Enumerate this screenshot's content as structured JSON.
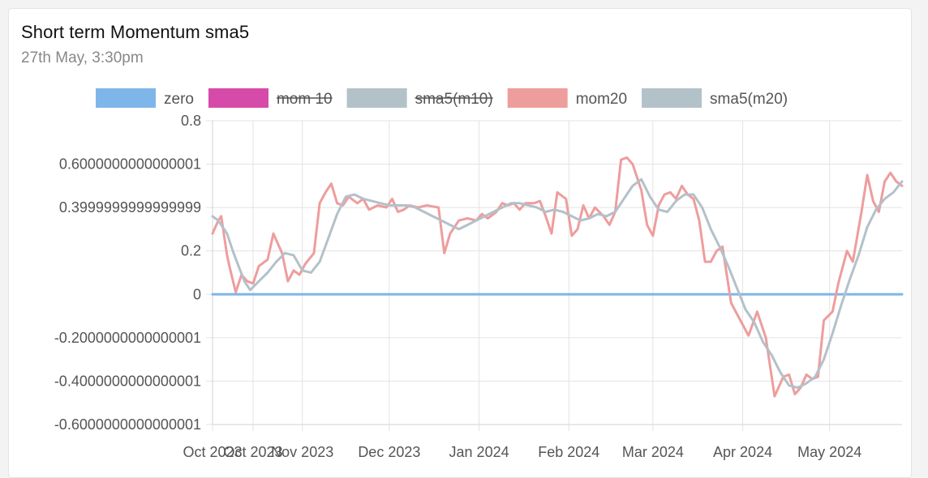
{
  "header": {
    "title": "Short term Momentum sma5",
    "subtitle": "27th May, 3:30pm"
  },
  "chart_data": {
    "type": "line",
    "x_range": [
      "2023-10-01",
      "2024-05-26"
    ],
    "ylim": [
      -0.6000000000000001,
      0.8
    ],
    "y_ticks": [
      {
        "value": 0.8,
        "label": "0.8"
      },
      {
        "value": 0.6000000000000001,
        "label": "0.6000000000000001"
      },
      {
        "value": 0.3999999999999999,
        "label": "0.3999999999999999"
      },
      {
        "value": 0.2,
        "label": "0.2"
      },
      {
        "value": 0,
        "label": "0"
      },
      {
        "value": -0.2000000000000001,
        "label": "-0.2000000000000001"
      },
      {
        "value": -0.4000000000000001,
        "label": "-0.4000000000000001"
      },
      {
        "value": -0.6000000000000001,
        "label": "-0.6000000000000001"
      }
    ],
    "x_ticks": [
      {
        "date": "2023-10-01",
        "label": "Oct 2023"
      },
      {
        "date": "2023-10-15",
        "label": "Oct 2023"
      },
      {
        "date": "2023-11-01",
        "label": "Nov 2023"
      },
      {
        "date": "2023-12-01",
        "label": "Dec 2023"
      },
      {
        "date": "2024-01-01",
        "label": "Jan 2024"
      },
      {
        "date": "2024-02-01",
        "label": "Feb 2024"
      },
      {
        "date": "2024-03-01",
        "label": "Mar 2024"
      },
      {
        "date": "2024-04-01",
        "label": "Apr 2024"
      },
      {
        "date": "2024-05-01",
        "label": "May 2024"
      }
    ],
    "grid": true,
    "legend_position": "top",
    "series": [
      {
        "name": "zero",
        "color": "#7fb6ea",
        "hidden": false,
        "points": [
          [
            "2023-10-01",
            0
          ],
          [
            "2024-05-26",
            0
          ]
        ]
      },
      {
        "name": "mom 10",
        "color": "#d64ba9",
        "hidden": true,
        "points": []
      },
      {
        "name": "sma5(m10)",
        "color": "#b3c1c9",
        "hidden": true,
        "points": []
      },
      {
        "name": "mom20",
        "color": "#ee9d9d",
        "hidden": false,
        "points": [
          [
            "2023-10-01",
            0.28
          ],
          [
            "2023-10-03",
            0.34
          ],
          [
            "2023-10-04",
            0.36
          ],
          [
            "2023-10-06",
            0.18
          ],
          [
            "2023-10-07",
            0.12
          ],
          [
            "2023-10-09",
            0.01
          ],
          [
            "2023-10-11",
            0.09
          ],
          [
            "2023-10-13",
            0.06
          ],
          [
            "2023-10-15",
            0.05
          ],
          [
            "2023-10-17",
            0.13
          ],
          [
            "2023-10-20",
            0.16
          ],
          [
            "2023-10-22",
            0.28
          ],
          [
            "2023-10-25",
            0.19
          ],
          [
            "2023-10-27",
            0.06
          ],
          [
            "2023-10-29",
            0.11
          ],
          [
            "2023-10-31",
            0.09
          ],
          [
            "2023-11-02",
            0.14
          ],
          [
            "2023-11-05",
            0.19
          ],
          [
            "2023-11-07",
            0.42
          ],
          [
            "2023-11-09",
            0.47
          ],
          [
            "2023-11-11",
            0.51
          ],
          [
            "2023-11-13",
            0.42
          ],
          [
            "2023-11-15",
            0.41
          ],
          [
            "2023-11-17",
            0.45
          ],
          [
            "2023-11-20",
            0.42
          ],
          [
            "2023-11-22",
            0.44
          ],
          [
            "2023-11-24",
            0.39
          ],
          [
            "2023-11-27",
            0.41
          ],
          [
            "2023-11-30",
            0.4
          ],
          [
            "2023-12-02",
            0.44
          ],
          [
            "2023-12-04",
            0.38
          ],
          [
            "2023-12-06",
            0.39
          ],
          [
            "2023-12-08",
            0.41
          ],
          [
            "2023-12-11",
            0.4
          ],
          [
            "2023-12-14",
            0.41
          ],
          [
            "2023-12-18",
            0.4
          ],
          [
            "2023-12-20",
            0.19
          ],
          [
            "2023-12-22",
            0.28
          ],
          [
            "2023-12-25",
            0.34
          ],
          [
            "2023-12-28",
            0.35
          ],
          [
            "2023-12-31",
            0.34
          ],
          [
            "2024-01-02",
            0.37
          ],
          [
            "2024-01-04",
            0.35
          ],
          [
            "2024-01-07",
            0.38
          ],
          [
            "2024-01-09",
            0.42
          ],
          [
            "2024-01-11",
            0.41
          ],
          [
            "2024-01-13",
            0.42
          ],
          [
            "2024-01-15",
            0.39
          ],
          [
            "2024-01-17",
            0.42
          ],
          [
            "2024-01-20",
            0.42
          ],
          [
            "2024-01-22",
            0.43
          ],
          [
            "2024-01-24",
            0.36
          ],
          [
            "2024-01-26",
            0.28
          ],
          [
            "2024-01-28",
            0.47
          ],
          [
            "2024-01-31",
            0.44
          ],
          [
            "2024-02-02",
            0.27
          ],
          [
            "2024-02-04",
            0.3
          ],
          [
            "2024-02-06",
            0.41
          ],
          [
            "2024-02-08",
            0.35
          ],
          [
            "2024-02-10",
            0.4
          ],
          [
            "2024-02-13",
            0.36
          ],
          [
            "2024-02-15",
            0.32
          ],
          [
            "2024-02-17",
            0.38
          ],
          [
            "2024-02-19",
            0.62
          ],
          [
            "2024-02-21",
            0.63
          ],
          [
            "2024-02-23",
            0.6
          ],
          [
            "2024-02-26",
            0.48
          ],
          [
            "2024-02-28",
            0.32
          ],
          [
            "2024-03-01",
            0.27
          ],
          [
            "2024-03-03",
            0.41
          ],
          [
            "2024-03-05",
            0.46
          ],
          [
            "2024-03-07",
            0.47
          ],
          [
            "2024-03-09",
            0.44
          ],
          [
            "2024-03-11",
            0.5
          ],
          [
            "2024-03-13",
            0.46
          ],
          [
            "2024-03-15",
            0.44
          ],
          [
            "2024-03-17",
            0.34
          ],
          [
            "2024-03-19",
            0.15
          ],
          [
            "2024-03-21",
            0.15
          ],
          [
            "2024-03-23",
            0.2
          ],
          [
            "2024-03-25",
            0.22
          ],
          [
            "2024-03-28",
            -0.04
          ],
          [
            "2024-04-01",
            -0.14
          ],
          [
            "2024-04-03",
            -0.19
          ],
          [
            "2024-04-06",
            -0.08
          ],
          [
            "2024-04-09",
            -0.2
          ],
          [
            "2024-04-12",
            -0.47
          ],
          [
            "2024-04-15",
            -0.38
          ],
          [
            "2024-04-17",
            -0.37
          ],
          [
            "2024-04-19",
            -0.46
          ],
          [
            "2024-04-21",
            -0.43
          ],
          [
            "2024-04-23",
            -0.37
          ],
          [
            "2024-04-25",
            -0.39
          ],
          [
            "2024-04-27",
            -0.38
          ],
          [
            "2024-04-29",
            -0.12
          ],
          [
            "2024-05-02",
            -0.08
          ],
          [
            "2024-05-04",
            0.05
          ],
          [
            "2024-05-07",
            0.2
          ],
          [
            "2024-05-09",
            0.15
          ],
          [
            "2024-05-12",
            0.38
          ],
          [
            "2024-05-14",
            0.55
          ],
          [
            "2024-05-16",
            0.43
          ],
          [
            "2024-05-18",
            0.38
          ],
          [
            "2024-05-20",
            0.52
          ],
          [
            "2024-05-22",
            0.56
          ],
          [
            "2024-05-24",
            0.52
          ],
          [
            "2024-05-26",
            0.5
          ]
        ]
      },
      {
        "name": "sma5(m20)",
        "color": "#b3c1c9",
        "hidden": false,
        "points": [
          [
            "2023-10-01",
            0.36
          ],
          [
            "2023-10-03",
            0.34
          ],
          [
            "2023-10-06",
            0.28
          ],
          [
            "2023-10-08",
            0.2
          ],
          [
            "2023-10-10",
            0.13
          ],
          [
            "2023-10-12",
            0.06
          ],
          [
            "2023-10-14",
            0.02
          ],
          [
            "2023-10-17",
            0.06
          ],
          [
            "2023-10-20",
            0.1
          ],
          [
            "2023-10-23",
            0.15
          ],
          [
            "2023-10-26",
            0.19
          ],
          [
            "2023-10-29",
            0.18
          ],
          [
            "2023-11-01",
            0.11
          ],
          [
            "2023-11-04",
            0.1
          ],
          [
            "2023-11-07",
            0.15
          ],
          [
            "2023-11-10",
            0.26
          ],
          [
            "2023-11-13",
            0.37
          ],
          [
            "2023-11-16",
            0.45
          ],
          [
            "2023-11-19",
            0.46
          ],
          [
            "2023-11-22",
            0.44
          ],
          [
            "2023-11-25",
            0.43
          ],
          [
            "2023-11-28",
            0.42
          ],
          [
            "2023-12-01",
            0.41
          ],
          [
            "2023-12-04",
            0.41
          ],
          [
            "2023-12-07",
            0.41
          ],
          [
            "2023-12-10",
            0.4
          ],
          [
            "2023-12-13",
            0.38
          ],
          [
            "2023-12-16",
            0.36
          ],
          [
            "2023-12-19",
            0.34
          ],
          [
            "2023-12-22",
            0.32
          ],
          [
            "2023-12-25",
            0.3
          ],
          [
            "2023-12-28",
            0.32
          ],
          [
            "2023-12-31",
            0.34
          ],
          [
            "2024-01-03",
            0.36
          ],
          [
            "2024-01-06",
            0.38
          ],
          [
            "2024-01-09",
            0.4
          ],
          [
            "2024-01-12",
            0.42
          ],
          [
            "2024-01-15",
            0.42
          ],
          [
            "2024-01-18",
            0.41
          ],
          [
            "2024-01-21",
            0.4
          ],
          [
            "2024-01-24",
            0.38
          ],
          [
            "2024-01-27",
            0.39
          ],
          [
            "2024-01-30",
            0.38
          ],
          [
            "2024-02-02",
            0.36
          ],
          [
            "2024-02-05",
            0.34
          ],
          [
            "2024-02-08",
            0.35
          ],
          [
            "2024-02-11",
            0.37
          ],
          [
            "2024-02-14",
            0.36
          ],
          [
            "2024-02-17",
            0.38
          ],
          [
            "2024-02-20",
            0.44
          ],
          [
            "2024-02-23",
            0.5
          ],
          [
            "2024-02-26",
            0.53
          ],
          [
            "2024-02-29",
            0.45
          ],
          [
            "2024-03-03",
            0.39
          ],
          [
            "2024-03-06",
            0.38
          ],
          [
            "2024-03-09",
            0.43
          ],
          [
            "2024-03-12",
            0.46
          ],
          [
            "2024-03-15",
            0.46
          ],
          [
            "2024-03-18",
            0.4
          ],
          [
            "2024-03-21",
            0.3
          ],
          [
            "2024-03-24",
            0.22
          ],
          [
            "2024-03-27",
            0.13
          ],
          [
            "2024-03-30",
            0.03
          ],
          [
            "2024-04-02",
            -0.07
          ],
          [
            "2024-04-05",
            -0.13
          ],
          [
            "2024-04-08",
            -0.22
          ],
          [
            "2024-04-11",
            -0.28
          ],
          [
            "2024-04-14",
            -0.36
          ],
          [
            "2024-04-17",
            -0.42
          ],
          [
            "2024-04-20",
            -0.43
          ],
          [
            "2024-04-23",
            -0.41
          ],
          [
            "2024-04-26",
            -0.38
          ],
          [
            "2024-04-29",
            -0.3
          ],
          [
            "2024-05-02",
            -0.18
          ],
          [
            "2024-05-05",
            -0.05
          ],
          [
            "2024-05-08",
            0.07
          ],
          [
            "2024-05-11",
            0.18
          ],
          [
            "2024-05-14",
            0.31
          ],
          [
            "2024-05-17",
            0.39
          ],
          [
            "2024-05-20",
            0.44
          ],
          [
            "2024-05-23",
            0.47
          ],
          [
            "2024-05-26",
            0.52
          ]
        ]
      }
    ]
  }
}
